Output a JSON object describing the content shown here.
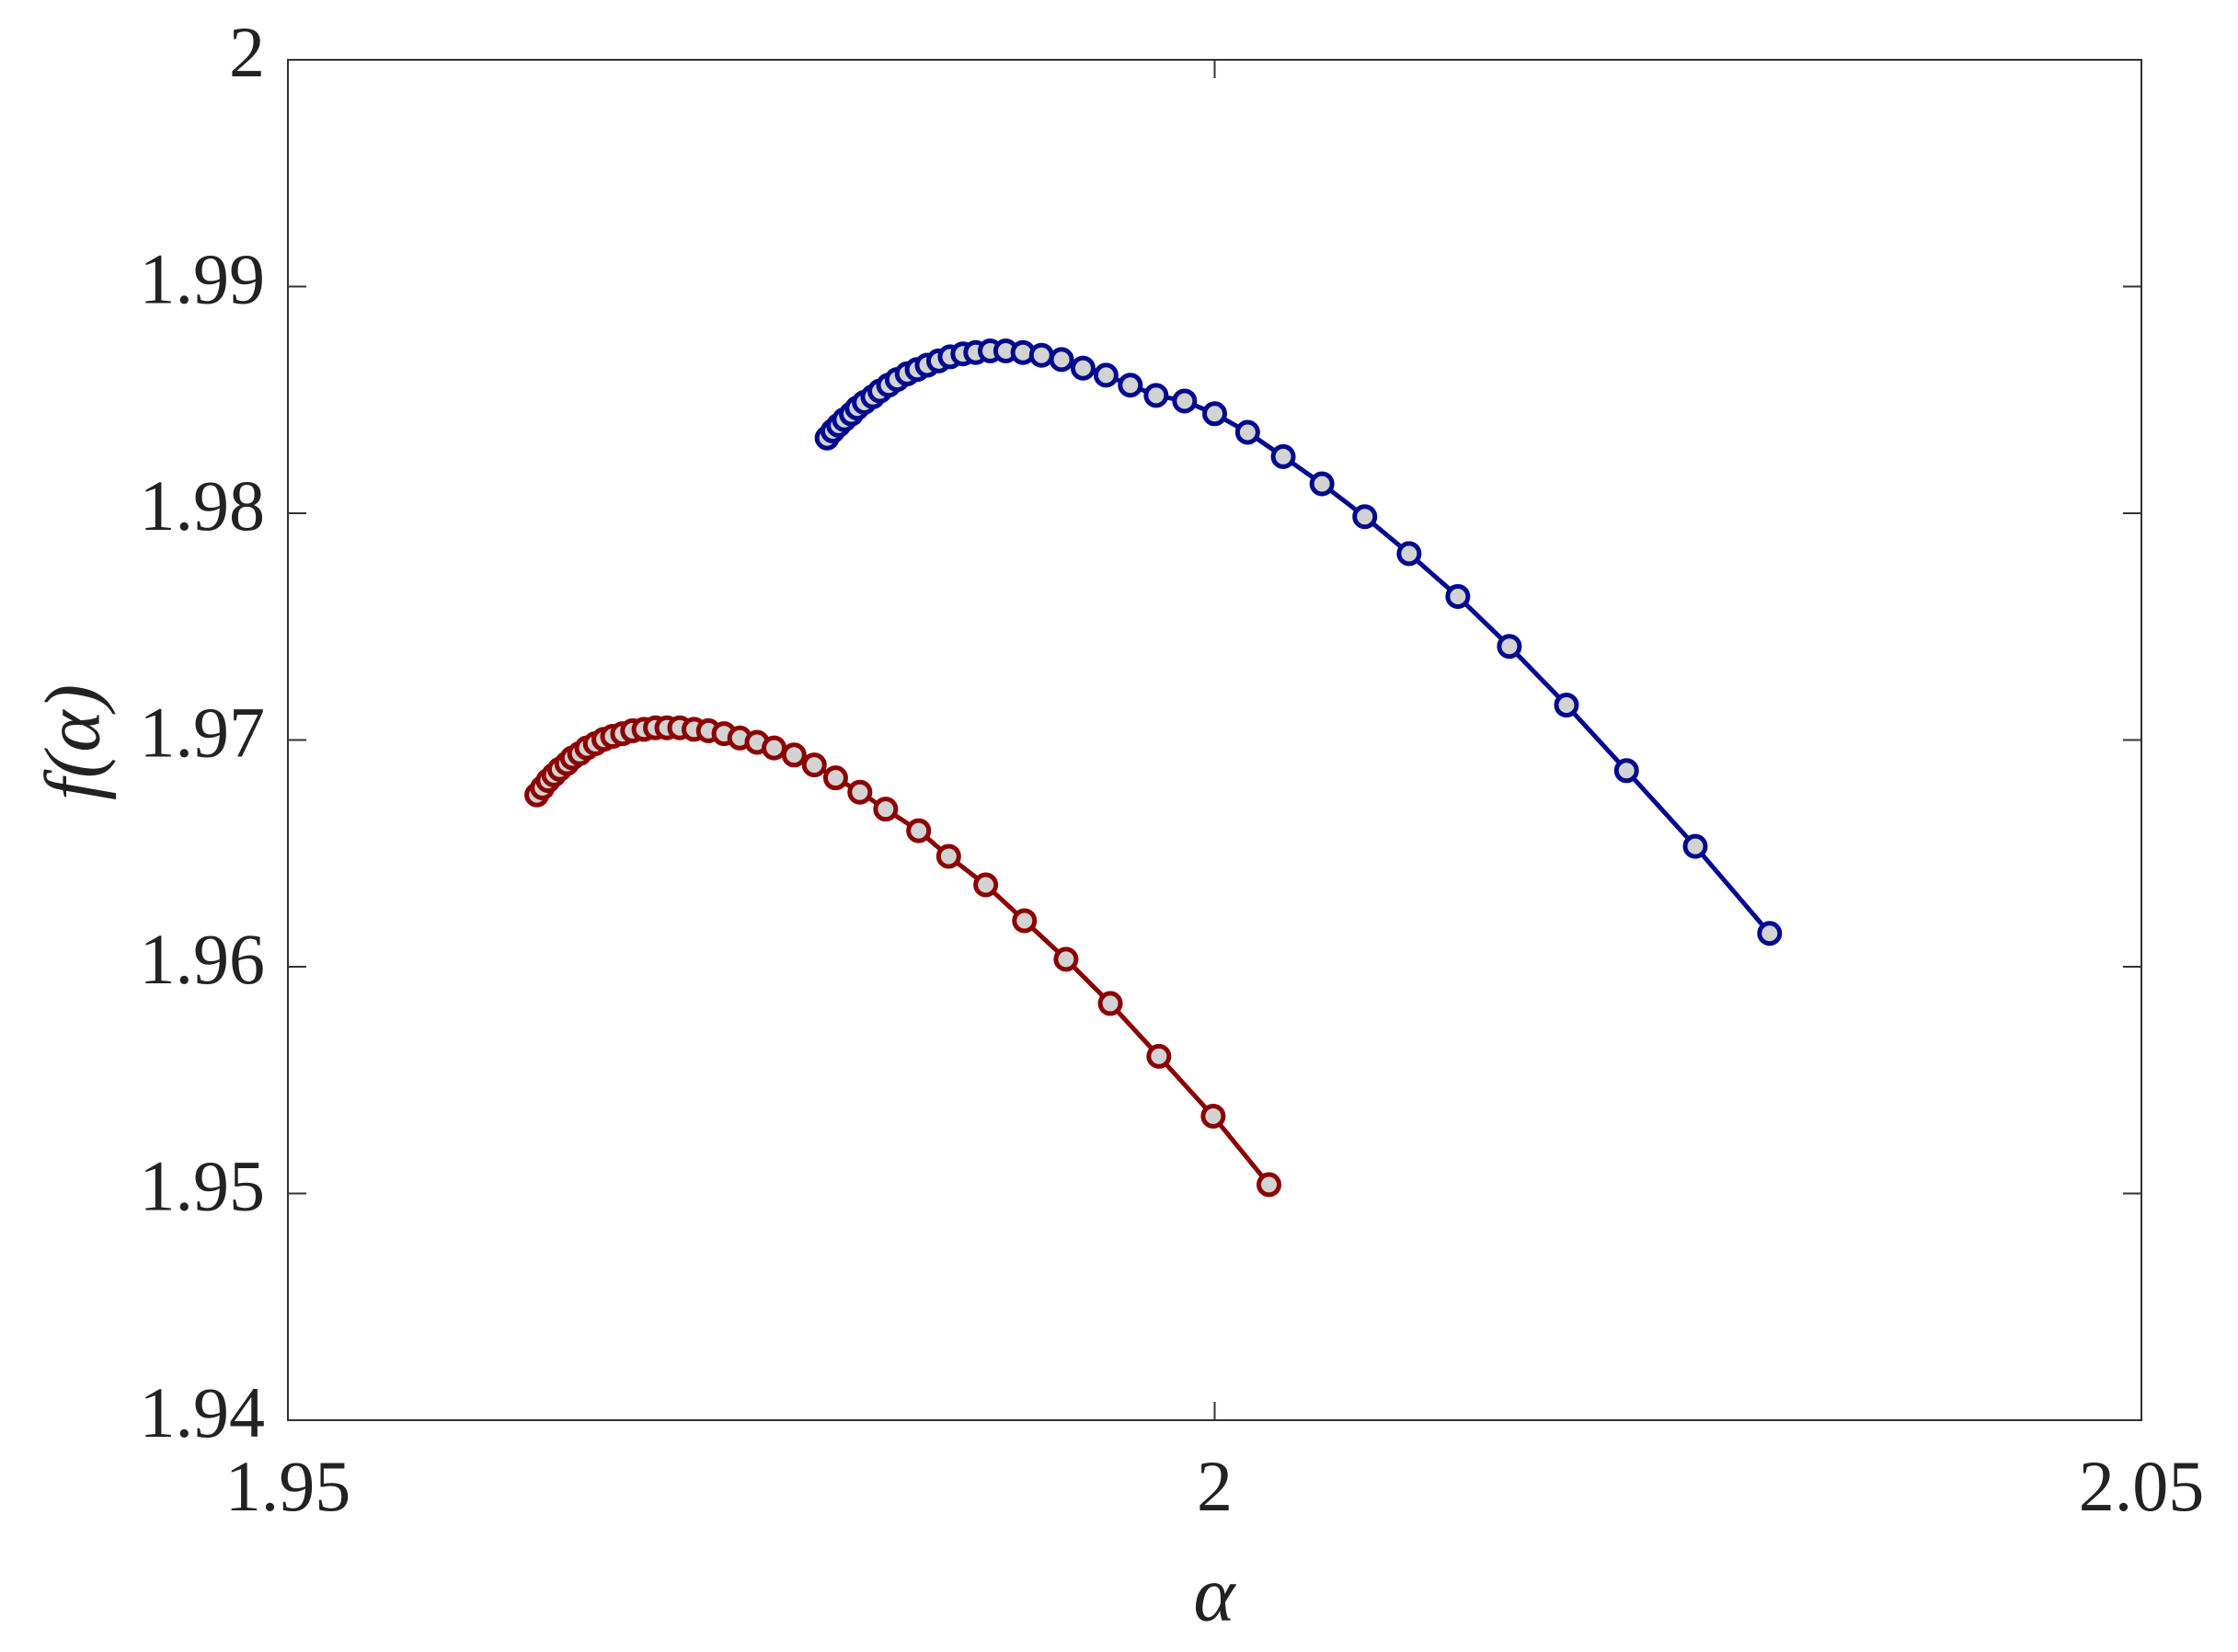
{
  "chart_data": {
    "type": "line",
    "x_label": "α",
    "y_label": "f(α)",
    "xlim": [
      1.95,
      2.05
    ],
    "xticks": [
      1.95,
      2,
      2.05
    ],
    "ylim": [
      1.94,
      2
    ],
    "yticks": [
      1.94,
      1.95,
      1.96,
      1.97,
      1.98,
      1.99,
      2
    ],
    "marker_fill": "#d3d3d3",
    "series": [
      {
        "color": "#000a8f",
        "x": [
          1.97909,
          1.9794,
          1.97971,
          1.98002,
          1.9804,
          1.98071,
          1.9811,
          1.98156,
          1.98194,
          1.98241,
          1.98287,
          1.98341,
          1.98395,
          1.98449,
          1.98511,
          1.98573,
          1.98642,
          1.98711,
          1.98789,
          1.98873,
          1.98966,
          1.99066,
          1.99174,
          1.9929,
          1.99414,
          1.99545,
          1.99684,
          1.99838,
          2.0,
          2.00178,
          2.0037,
          2.00579,
          2.0081,
          2.01049,
          2.01312,
          2.0159,
          2.01898,
          2.02222,
          2.02593,
          2.02994
        ],
        "values": [
          1.98332,
          1.98363,
          1.98388,
          1.98413,
          1.98438,
          1.98464,
          1.98489,
          1.98514,
          1.98539,
          1.98565,
          1.9859,
          1.98615,
          1.98634,
          1.98653,
          1.98672,
          1.9869,
          1.98703,
          1.98709,
          1.98716,
          1.98716,
          1.98709,
          1.98697,
          1.98678,
          1.9864,
          1.98609,
          1.98565,
          1.9852,
          1.98495,
          1.98439,
          1.98357,
          1.9825,
          1.9813,
          1.97985,
          1.97822,
          1.97633,
          1.97413,
          1.97154,
          1.96865,
          1.96531,
          1.96147
        ]
      },
      {
        "color": "#8b0000",
        "x": [
          1.96343,
          1.96373,
          1.96404,
          1.96435,
          1.96466,
          1.96505,
          1.96535,
          1.96574,
          1.96613,
          1.96659,
          1.96705,
          1.96752,
          1.96806,
          1.9686,
          1.96921,
          1.96983,
          1.97045,
          1.97114,
          1.97191,
          1.97269,
          1.97353,
          1.97438,
          1.97531,
          1.97623,
          1.97731,
          1.9784,
          1.97955,
          1.98086,
          1.98225,
          1.98403,
          1.98565,
          1.98765,
          1.98974,
          1.99198,
          1.99437,
          1.99699,
          1.99992,
          2.00293
        ],
        "values": [
          1.96758,
          1.96789,
          1.96821,
          1.96846,
          1.96871,
          1.96896,
          1.96921,
          1.9694,
          1.96965,
          1.96984,
          1.97003,
          1.97016,
          1.97028,
          1.97041,
          1.97047,
          1.97054,
          1.97054,
          1.97054,
          1.97047,
          1.97041,
          1.97028,
          1.97009,
          1.9699,
          1.96965,
          1.96934,
          1.9689,
          1.96833,
          1.9677,
          1.96695,
          1.966,
          1.96487,
          1.96361,
          1.96203,
          1.96033,
          1.95838,
          1.95605,
          1.95341,
          1.95039
        ]
      }
    ]
  }
}
